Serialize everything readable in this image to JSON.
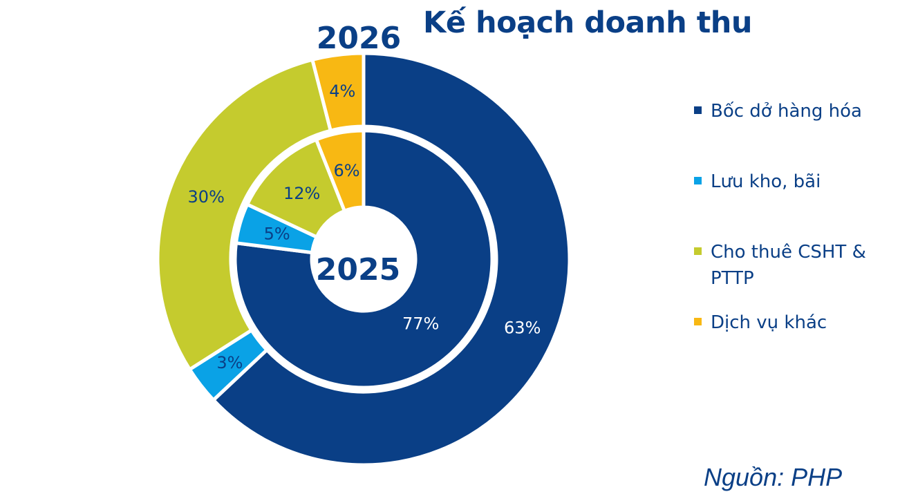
{
  "title": "Kế hoạch doanh thu",
  "source": "Nguồn: PHP",
  "chart_data": {
    "type": "pie",
    "title": "Kế hoạch doanh thu",
    "legend_position": "right",
    "categories": [
      "Bốc dở hàng hóa",
      "Lưu kho, bãi",
      "Cho thuê CSHT & PTTP",
      "Dịch vụ khác"
    ],
    "colors": [
      "#0a3f86",
      "#0aa2e6",
      "#c5cb2e",
      "#f8b813"
    ],
    "series": [
      {
        "name": "2026",
        "ring": "outer",
        "values": [
          63,
          3,
          30,
          4
        ],
        "labels": [
          "63%",
          "3%",
          "30%",
          "4%"
        ]
      },
      {
        "name": "2025",
        "ring": "inner",
        "values": [
          77,
          5,
          12,
          6
        ],
        "labels": [
          "77%",
          "5%",
          "12%",
          "6%"
        ]
      }
    ]
  }
}
